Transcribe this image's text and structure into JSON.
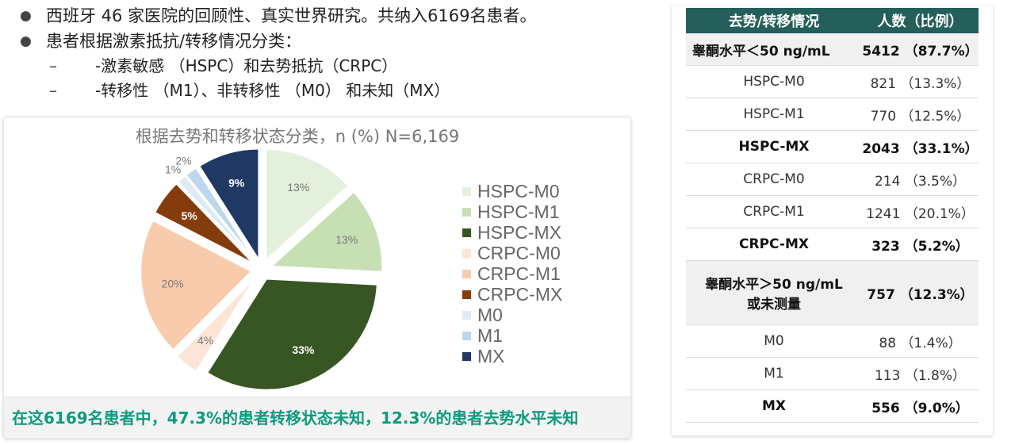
{
  "bullets": {
    "b1": "西班牙 46 家医院的回顾性、真实世界研究。共纳入6169名患者。",
    "b2": "患者根据激素抵抗/转移情况分类：",
    "sub1": "-激素敏感 （HSPC）和去势抵抗（CRPC）",
    "sub2": "-转移性 （M1）、非转移性 （M0） 和未知（MX）"
  },
  "chart_data": {
    "type": "pie",
    "title": "根据去势和转移状态分类，n (%) N=6,169",
    "categories": [
      "HSPC-M0",
      "HSPC-M1",
      "HSPC-MX",
      "CRPC-M0",
      "CRPC-M1",
      "CRPC-MX",
      "M0",
      "M1",
      "MX"
    ],
    "values": [
      13.3,
      12.5,
      33.1,
      3.5,
      20.1,
      5.2,
      1.4,
      1.8,
      9.0
    ],
    "data_labels": [
      "13%",
      "13%",
      "33%",
      "4%",
      "20%",
      "5%",
      "1%",
      "2%",
      "9%"
    ],
    "colors": [
      "#e3f0dc",
      "#c6e0b4",
      "#375623",
      "#fbe5d6",
      "#f8cbad",
      "#843c0c",
      "#deebf7",
      "#bdd7ee",
      "#1f3864"
    ],
    "label_colors": [
      "#777777",
      "#777777",
      "#ffffff",
      "#777777",
      "#777777",
      "#ffffff",
      "#777777",
      "#777777",
      "#ffffff"
    ],
    "exploded": true,
    "legend_position": "right"
  },
  "summary": "在这6169名患者中，47.3%的患者转移状态未知，12.3%的患者去势水平未知",
  "table": {
    "headers": [
      "去势/转移情况",
      "人数（比例）"
    ],
    "rows": [
      {
        "label": "睾酮水平＜50 ng/mL",
        "value": "5412 （87.7%）",
        "style": "group"
      },
      {
        "label": "HSPC-M0",
        "value": "821 （13.3%）",
        "style": ""
      },
      {
        "label": "HSPC-M1",
        "value": "770 （12.5%）",
        "style": ""
      },
      {
        "label": "HSPC-MX",
        "value": "2043 （33.1%）",
        "style": "bold"
      },
      {
        "label": "CRPC-M0",
        "value": "214 （3.5%）",
        "style": ""
      },
      {
        "label": "CRPC-M1",
        "value": "1241 （20.1%）",
        "style": ""
      },
      {
        "label": "CRPC-MX",
        "value": "323 （5.2%）",
        "style": "bold"
      },
      {
        "label": "睾酮水平＞50 ng/mL\n或未测量",
        "value": "757 （12.3%）",
        "style": "group"
      },
      {
        "label": "M0",
        "value": "88 （1.4%）",
        "style": ""
      },
      {
        "label": "M1",
        "value": "113 （1.8%）",
        "style": ""
      },
      {
        "label": "MX",
        "value": "556 （9.0%）",
        "style": "bold"
      }
    ]
  }
}
